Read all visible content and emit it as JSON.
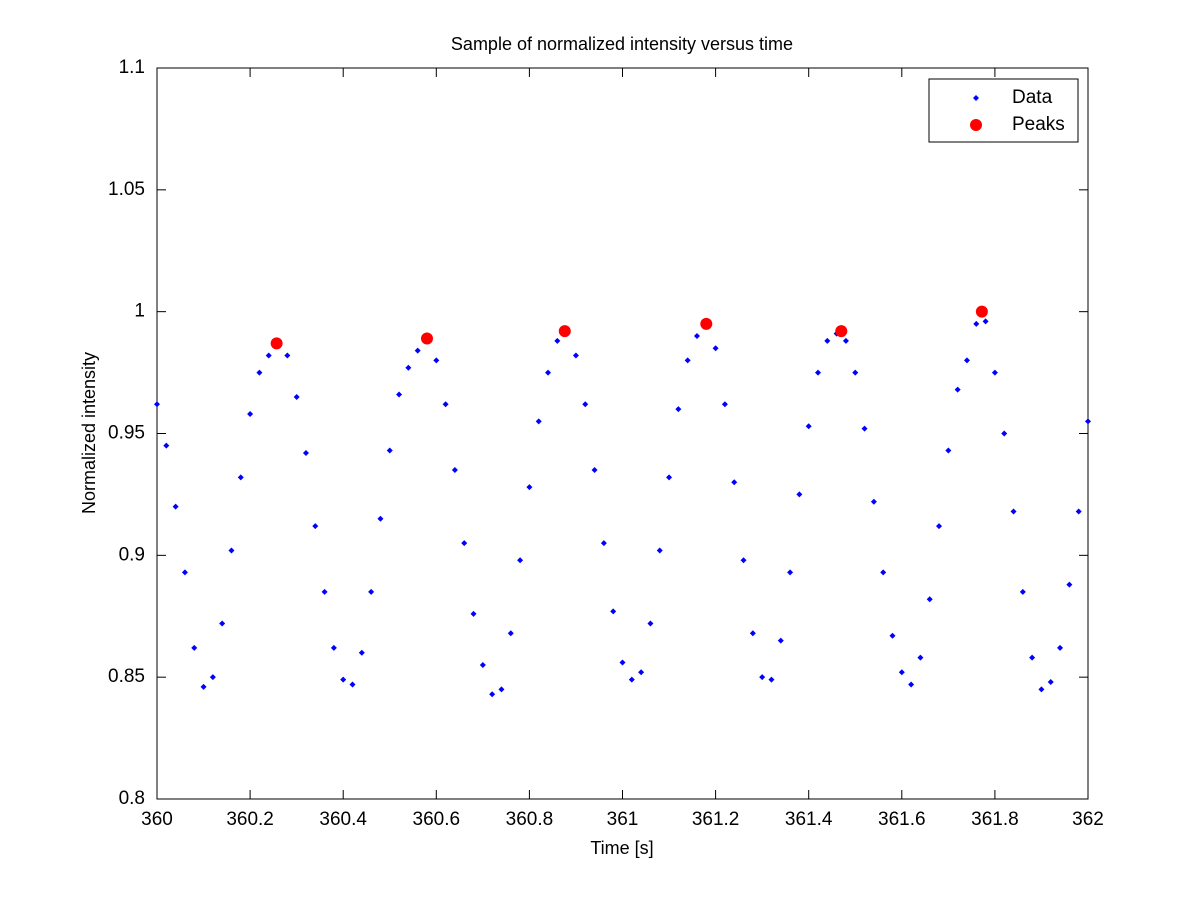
{
  "chart_data": {
    "type": "scatter",
    "title": "Sample of normalized intensity versus time",
    "x_label": "Time [s]",
    "y_label": "Normalized intensity",
    "xlim": [
      360,
      362
    ],
    "xticks": [
      360,
      360.2,
      360.4,
      360.6,
      360.8,
      361,
      361.2,
      361.4,
      361.6,
      361.8,
      362
    ],
    "ylim": [
      0.8,
      1.1
    ],
    "yticks": [
      0.8,
      0.85,
      0.9,
      0.95,
      1,
      1.05,
      1.1
    ],
    "grid": false,
    "legend": "upper-right",
    "series": [
      {
        "name": "Data",
        "color": "#0000ff",
        "marker": "diamond",
        "x": [
          360,
          360.02,
          360.04,
          360.06,
          360.08,
          360.1,
          360.12,
          360.14,
          360.16,
          360.18,
          360.2,
          360.22,
          360.24,
          360.26,
          360.28,
          360.3,
          360.32,
          360.34,
          360.36,
          360.38,
          360.4,
          360.42,
          360.44,
          360.46,
          360.48,
          360.5,
          360.52,
          360.54,
          360.56,
          360.58,
          360.6,
          360.62,
          360.64,
          360.66,
          360.68,
          360.7,
          360.72,
          360.74,
          360.76,
          360.78,
          360.8,
          360.82,
          360.84,
          360.86,
          360.88,
          360.9,
          360.92,
          360.94,
          360.96,
          360.98,
          361,
          361.02,
          361.04,
          361.06,
          361.08,
          361.1,
          361.12,
          361.14,
          361.16,
          361.18,
          361.2,
          361.22,
          361.24,
          361.26,
          361.28,
          361.3,
          361.32,
          361.34,
          361.36,
          361.38,
          361.4,
          361.42,
          361.44,
          361.46,
          361.48,
          361.5,
          361.52,
          361.54,
          361.56,
          361.58,
          361.6,
          361.62,
          361.64,
          361.66,
          361.68,
          361.7,
          361.72,
          361.74,
          361.76,
          361.78,
          361.8,
          361.82,
          361.84,
          361.86,
          361.88,
          361.9,
          361.92,
          361.94,
          361.96,
          361.98,
          362
        ],
        "values": [
          0.962,
          0.945,
          0.92,
          0.893,
          0.862,
          0.846,
          0.85,
          0.872,
          0.902,
          0.932,
          0.958,
          0.975,
          0.982,
          0.987,
          0.982,
          0.965,
          0.942,
          0.912,
          0.885,
          0.862,
          0.849,
          0.847,
          0.86,
          0.885,
          0.915,
          0.943,
          0.966,
          0.977,
          0.984,
          0.989,
          0.98,
          0.962,
          0.935,
          0.905,
          0.876,
          0.855,
          0.843,
          0.845,
          0.868,
          0.898,
          0.928,
          0.955,
          0.975,
          0.988,
          0.991,
          0.982,
          0.962,
          0.935,
          0.905,
          0.877,
          0.856,
          0.849,
          0.852,
          0.872,
          0.902,
          0.932,
          0.96,
          0.98,
          0.99,
          0.995,
          0.985,
          0.962,
          0.93,
          0.898,
          0.868,
          0.85,
          0.849,
          0.865,
          0.893,
          0.925,
          0.953,
          0.975,
          0.988,
          0.991,
          0.988,
          0.975,
          0.952,
          0.922,
          0.893,
          0.867,
          0.852,
          0.847,
          0.858,
          0.882,
          0.912,
          0.943,
          0.968,
          0.98,
          0.995,
          0.996,
          0.975,
          0.95,
          0.918,
          0.885,
          0.858,
          0.845,
          0.848,
          0.862,
          0.888,
          0.918,
          0.955
        ]
      },
      {
        "name": "Peaks",
        "color": "#ff0000",
        "marker": "circle",
        "x": [
          360.257,
          360.58,
          360.876,
          361.18,
          361.47,
          361.772
        ],
        "values": [
          0.987,
          0.989,
          0.992,
          0.995,
          0.992,
          1.0
        ]
      }
    ]
  }
}
